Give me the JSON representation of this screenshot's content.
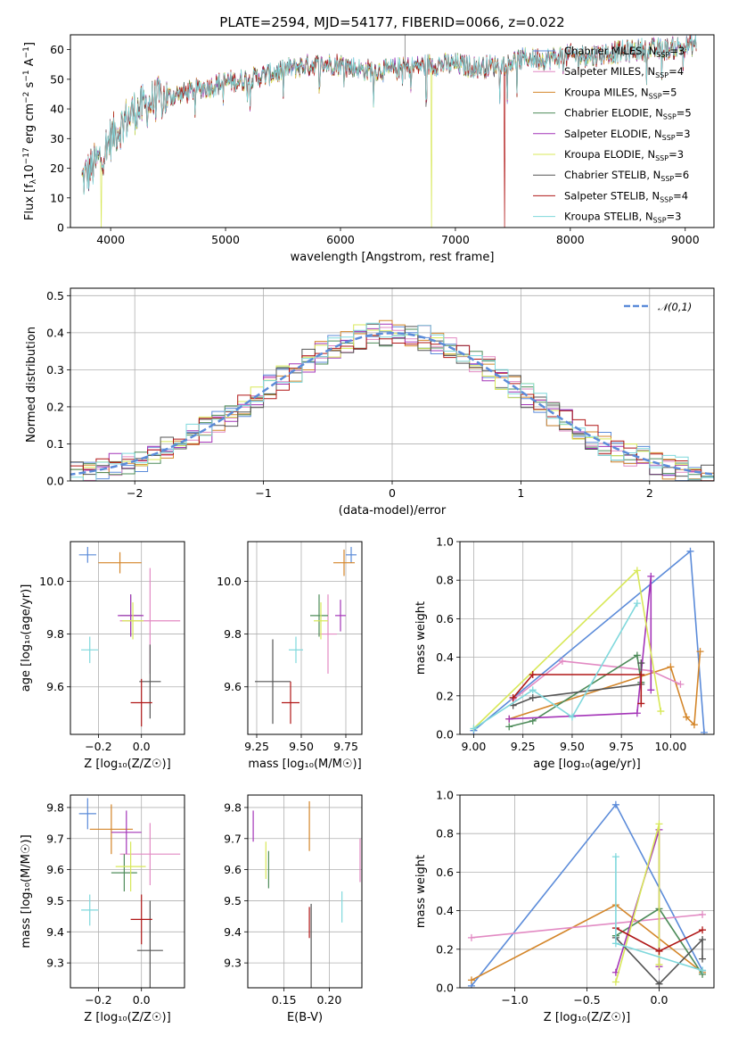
{
  "figure_title": "PLATE=2594, MJD=54177, FIBERID=0066, z=0.022",
  "models": [
    {
      "name": "Chabrier MILES",
      "nssp": "3",
      "color": "#5b8bd9"
    },
    {
      "name": "Salpeter MILES",
      "nssp": "4",
      "color": "#e28ac3"
    },
    {
      "name": "Kroupa MILES",
      "nssp": "5",
      "color": "#d4862a"
    },
    {
      "name": "Chabrier ELODIE",
      "nssp": "5",
      "color": "#4e8c5a"
    },
    {
      "name": "Salpeter ELODIE",
      "nssp": "3",
      "color": "#a435b8"
    },
    {
      "name": "Kroupa ELODIE",
      "nssp": "3",
      "color": "#d8e858"
    },
    {
      "name": "Chabrier STELIB",
      "nssp": "6",
      "color": "#555555"
    },
    {
      "name": "Salpeter STELIB",
      "nssp": "4",
      "color": "#b01717"
    },
    {
      "name": "Kroupa STELIB",
      "nssp": "3",
      "color": "#7fd8dc"
    }
  ],
  "legend_nssp_label": "N",
  "legend_nssp_sub": "SSP",
  "chart_data": [
    {
      "id": "spectrum",
      "type": "line",
      "title": "PLATE=2594, MJD=54177, FIBERID=0066, z=0.022",
      "xlabel": "wavelength [Angstrom, rest frame]",
      "ylabel_parts": [
        "Flux [f",
        "λ",
        "10",
        "−17",
        " erg cm",
        "−2",
        " s",
        "−1",
        " A",
        "−1",
        "]"
      ],
      "xlim": [
        3650,
        9250
      ],
      "ylim": [
        0,
        65
      ],
      "xticks": [
        4000,
        5000,
        6000,
        7000,
        8000,
        9000
      ],
      "yticks": [
        0,
        10,
        20,
        30,
        40,
        50,
        60
      ],
      "legend": "upper right",
      "continuum_x": [
        3750,
        3900,
        4000,
        4100,
        4200,
        4400,
        4600,
        4800,
        5000,
        5200,
        5400,
        5600,
        5800,
        6000,
        6200,
        6400,
        6600,
        6800,
        7000,
        7200,
        7400,
        7600,
        7800,
        8000,
        8200,
        8400,
        8600,
        8800,
        9000,
        9100
      ],
      "continuum_y": [
        16,
        23,
        30,
        35,
        39,
        43,
        45,
        47,
        49,
        50,
        52,
        54,
        55,
        55,
        53,
        53,
        54,
        55,
        55,
        54,
        55,
        57,
        57,
        58,
        58,
        59,
        60,
        60,
        61,
        62
      ],
      "dropouts": [
        {
          "model": "Kroupa ELODIE",
          "x": 6790
        },
        {
          "model": "Salpeter STELIB",
          "x": 7430
        },
        {
          "model": "Kroupa ELODIE",
          "x": 3920
        }
      ]
    },
    {
      "id": "residuals",
      "type": "histogram",
      "xlabel": "(data-model)/error",
      "ylabel": "Normed distribution",
      "xlim": [
        -2.5,
        2.5
      ],
      "ylim": [
        0,
        0.52
      ],
      "xticks": [
        -2,
        -1,
        0,
        1,
        2
      ],
      "yticks": [
        0.0,
        0.1,
        0.2,
        0.3,
        0.4,
        0.5
      ],
      "reference": {
        "label": "𝒩(0,1)",
        "color": "#5b8bd9",
        "style": "dashed"
      },
      "bin_width": 0.1,
      "legend": "upper right"
    },
    {
      "id": "age_vs_Z",
      "type": "scatter",
      "xlabel": "Z [log₁₀(Z/Z☉)]",
      "ylabel": "age  [log₁₀(age/yr)]",
      "xlim": [
        -0.33,
        0.2
      ],
      "ylim": [
        9.42,
        10.15
      ],
      "xticks": [
        -0.2,
        0.0
      ],
      "yticks": [
        9.6,
        9.8,
        10.0
      ],
      "points": [
        {
          "model": "Chabrier MILES",
          "x": -0.25,
          "xerr": 0.04,
          "y": 10.1,
          "yerr": 0.03
        },
        {
          "model": "Kroupa MILES",
          "x": -0.1,
          "xerr": 0.1,
          "y": 10.07,
          "yerr": 0.04
        },
        {
          "model": "Salpeter MILES",
          "x": 0.04,
          "xerr": 0.14,
          "y": 9.85,
          "yerr": 0.2
        },
        {
          "model": "Chabrier ELODIE",
          "x": -0.05,
          "xerr": 0.05,
          "y": 9.87,
          "yerr": 0.08
        },
        {
          "model": "Salpeter ELODIE",
          "x": -0.05,
          "xerr": 0.06,
          "y": 9.87,
          "yerr": 0.08
        },
        {
          "model": "Kroupa ELODIE",
          "x": -0.04,
          "xerr": 0.05,
          "y": 9.85,
          "yerr": 0.07
        },
        {
          "model": "Chabrier STELIB",
          "x": 0.04,
          "xerr": 0.05,
          "y": 9.62,
          "yerr": 0.14
        },
        {
          "model": "Salpeter STELIB",
          "x": 0.0,
          "xerr": 0.05,
          "y": 9.54,
          "yerr": 0.09
        },
        {
          "model": "Kroupa STELIB",
          "x": -0.24,
          "xerr": 0.04,
          "y": 9.74,
          "yerr": 0.05
        }
      ]
    },
    {
      "id": "age_vs_mass",
      "type": "scatter",
      "xlabel": "mass [log₁₀(M/M☉)]",
      "ylabel": "",
      "xlim": [
        9.2,
        9.84
      ],
      "ylim": [
        9.42,
        10.15
      ],
      "xticks": [
        9.25,
        9.5,
        9.75
      ],
      "yticks": [
        9.6,
        9.8,
        10.0
      ],
      "points": [
        {
          "model": "Chabrier MILES",
          "x": 9.78,
          "xerr": 0.03,
          "y": 10.1,
          "yerr": 0.03
        },
        {
          "model": "Kroupa MILES",
          "x": 9.74,
          "xerr": 0.06,
          "y": 10.07,
          "yerr": 0.05
        },
        {
          "model": "Salpeter MILES",
          "x": 9.65,
          "xerr": 0.05,
          "y": 9.8,
          "yerr": 0.15
        },
        {
          "model": "Chabrier ELODIE",
          "x": 9.6,
          "xerr": 0.05,
          "y": 9.87,
          "yerr": 0.08
        },
        {
          "model": "Salpeter ELODIE",
          "x": 9.72,
          "xerr": 0.03,
          "y": 9.87,
          "yerr": 0.06
        },
        {
          "model": "Kroupa ELODIE",
          "x": 9.61,
          "xerr": 0.04,
          "y": 9.85,
          "yerr": 0.07
        },
        {
          "model": "Chabrier STELIB",
          "x": 9.34,
          "xerr": 0.1,
          "y": 9.62,
          "yerr": 0.16
        },
        {
          "model": "Salpeter STELIB",
          "x": 9.44,
          "xerr": 0.05,
          "y": 9.54,
          "yerr": 0.08
        },
        {
          "model": "Kroupa STELIB",
          "x": 9.47,
          "xerr": 0.04,
          "y": 9.74,
          "yerr": 0.05
        }
      ]
    },
    {
      "id": "weight_vs_age",
      "type": "line",
      "xlabel": "age  [log₁₀(age/yr)]",
      "ylabel": "mass weight",
      "xlim": [
        8.93,
        10.22
      ],
      "ylim": [
        0,
        1.0
      ],
      "xticks": [
        9.0,
        9.25,
        9.5,
        9.75,
        10.0
      ],
      "yticks": [
        0.0,
        0.2,
        0.4,
        0.6,
        0.8,
        1.0
      ],
      "series": [
        {
          "model": "Chabrier MILES",
          "x": [
            9.0,
            10.1,
            10.17
          ],
          "y": [
            0.02,
            0.95,
            0.01
          ]
        },
        {
          "model": "Kroupa MILES",
          "x": [
            9.18,
            10.0,
            10.08,
            10.12,
            10.15
          ],
          "y": [
            0.08,
            0.35,
            0.09,
            0.05,
            0.43
          ]
        },
        {
          "model": "Salpeter MILES",
          "x": [
            9.2,
            9.45,
            9.9,
            10.05
          ],
          "y": [
            0.18,
            0.38,
            0.33,
            0.26
          ]
        },
        {
          "model": "Chabrier ELODIE",
          "x": [
            9.18,
            9.3,
            9.83,
            9.85
          ],
          "y": [
            0.04,
            0.07,
            0.41,
            0.27
          ]
        },
        {
          "model": "Salpeter ELODIE",
          "x": [
            9.18,
            9.83,
            9.9,
            9.9
          ],
          "y": [
            0.08,
            0.11,
            0.82,
            0.23
          ]
        },
        {
          "model": "Kroupa ELODIE",
          "x": [
            9.0,
            9.83,
            9.95
          ],
          "y": [
            0.03,
            0.85,
            0.12
          ]
        },
        {
          "model": "Chabrier STELIB",
          "x": [
            9.2,
            9.3,
            9.85,
            9.85
          ],
          "y": [
            0.15,
            0.19,
            0.26,
            0.37
          ]
        },
        {
          "model": "Salpeter STELIB",
          "x": [
            9.2,
            9.3,
            9.85,
            9.85
          ],
          "y": [
            0.19,
            0.31,
            0.31,
            0.16
          ]
        },
        {
          "model": "Kroupa STELIB",
          "x": [
            9.0,
            9.3,
            9.5,
            9.83
          ],
          "y": [
            0.03,
            0.23,
            0.09,
            0.68
          ]
        }
      ]
    },
    {
      "id": "mass_vs_Z",
      "type": "scatter",
      "xlabel": "Z [log₁₀(Z/Z☉)]",
      "ylabel": "mass [log₁₀(M/M☉)]",
      "xlim": [
        -0.33,
        0.2
      ],
      "ylim": [
        9.22,
        9.84
      ],
      "xticks": [
        -0.2,
        0.0
      ],
      "yticks": [
        9.3,
        9.4,
        9.5,
        9.6,
        9.7,
        9.8
      ],
      "points": [
        {
          "model": "Chabrier MILES",
          "x": -0.25,
          "xerr": 0.04,
          "y": 9.78,
          "yerr": 0.05
        },
        {
          "model": "Kroupa MILES",
          "x": -0.14,
          "xerr": 0.1,
          "y": 9.73,
          "yerr": 0.08
        },
        {
          "model": "Salpeter MILES",
          "x": 0.04,
          "xerr": 0.14,
          "y": 9.65,
          "yerr": 0.1
        },
        {
          "model": "Chabrier ELODIE",
          "x": -0.08,
          "xerr": 0.06,
          "y": 9.59,
          "yerr": 0.06
        },
        {
          "model": "Salpeter ELODIE",
          "x": -0.07,
          "xerr": 0.07,
          "y": 9.72,
          "yerr": 0.07
        },
        {
          "model": "Kroupa ELODIE",
          "x": -0.05,
          "xerr": 0.07,
          "y": 9.61,
          "yerr": 0.08
        },
        {
          "model": "Chabrier STELIB",
          "x": 0.04,
          "xerr": 0.06,
          "y": 9.34,
          "yerr": 0.16
        },
        {
          "model": "Salpeter STELIB",
          "x": 0.0,
          "xerr": 0.05,
          "y": 9.44,
          "yerr": 0.08
        },
        {
          "model": "Kroupa STELIB",
          "x": -0.24,
          "xerr": 0.04,
          "y": 9.47,
          "yerr": 0.05
        }
      ]
    },
    {
      "id": "mass_vs_ebv",
      "type": "scatter",
      "xlabel": "E(B-V)",
      "ylabel": "",
      "xlim": [
        0.11,
        0.236
      ],
      "ylim": [
        9.22,
        9.84
      ],
      "xticks": [
        0.15,
        0.2
      ],
      "yticks": [
        9.3,
        9.4,
        9.5,
        9.6,
        9.7,
        9.8
      ],
      "points": [
        {
          "model": "Salpeter ELODIE",
          "x": 0.116,
          "xerr": 0,
          "y": 9.74,
          "yerr": 0.05
        },
        {
          "model": "Kroupa ELODIE",
          "x": 0.13,
          "xerr": 0,
          "y": 9.63,
          "yerr": 0.06
        },
        {
          "model": "Chabrier ELODIE",
          "x": 0.133,
          "xerr": 0,
          "y": 9.6,
          "yerr": 0.06
        },
        {
          "model": "Kroupa MILES",
          "x": 0.178,
          "xerr": 0,
          "y": 9.74,
          "yerr": 0.08
        },
        {
          "model": "Salpeter STELIB",
          "x": 0.178,
          "xerr": 0,
          "y": 9.43,
          "yerr": 0.05
        },
        {
          "model": "Chabrier STELIB",
          "x": 0.18,
          "xerr": 0,
          "y": 9.35,
          "yerr": 0.14
        },
        {
          "model": "Kroupa STELIB",
          "x": 0.214,
          "xerr": 0,
          "y": 9.48,
          "yerr": 0.05
        },
        {
          "model": "Salpeter MILES",
          "x": 0.234,
          "xerr": 0,
          "y": 9.63,
          "yerr": 0.07
        }
      ]
    },
    {
      "id": "weight_vs_Z",
      "type": "line",
      "xlabel": "Z [log₁₀(Z/Z☉)]",
      "ylabel": "mass weight",
      "xlim": [
        -1.38,
        0.38
      ],
      "ylim": [
        0,
        1.0
      ],
      "xticks": [
        -1.0,
        -0.5,
        0.0
      ],
      "yticks": [
        0.0,
        0.2,
        0.4,
        0.6,
        0.8,
        1.0
      ],
      "series": [
        {
          "model": "Chabrier MILES",
          "x": [
            -1.3,
            -0.3,
            0.3
          ],
          "y": [
            0.01,
            0.95,
            0.09
          ]
        },
        {
          "model": "Kroupa MILES",
          "x": [
            -1.3,
            -0.3,
            0.3
          ],
          "y": [
            0.04,
            0.43,
            0.08
          ]
        },
        {
          "model": "Salpeter MILES",
          "x": [
            -1.3,
            0.3
          ],
          "y": [
            0.26,
            0.38
          ]
        },
        {
          "model": "Chabrier ELODIE",
          "x": [
            -0.3,
            0.0,
            0.3
          ],
          "y": [
            0.27,
            0.41,
            0.07
          ]
        },
        {
          "model": "Salpeter ELODIE",
          "x": [
            -0.3,
            0.0,
            0.0
          ],
          "y": [
            0.08,
            0.82,
            0.11
          ]
        },
        {
          "model": "Kroupa ELODIE",
          "x": [
            -0.3,
            0.0,
            0.0
          ],
          "y": [
            0.03,
            0.85,
            0.12
          ]
        },
        {
          "model": "Chabrier STELIB",
          "x": [
            -0.3,
            0.0,
            0.3,
            0.3
          ],
          "y": [
            0.26,
            0.02,
            0.25,
            0.15
          ]
        },
        {
          "model": "Salpeter STELIB",
          "x": [
            -0.3,
            0.0,
            0.3
          ],
          "y": [
            0.31,
            0.19,
            0.3
          ]
        },
        {
          "model": "Kroupa STELIB",
          "x": [
            -0.3,
            -0.3,
            0.3
          ],
          "y": [
            0.68,
            0.23,
            0.09
          ]
        }
      ]
    }
  ]
}
